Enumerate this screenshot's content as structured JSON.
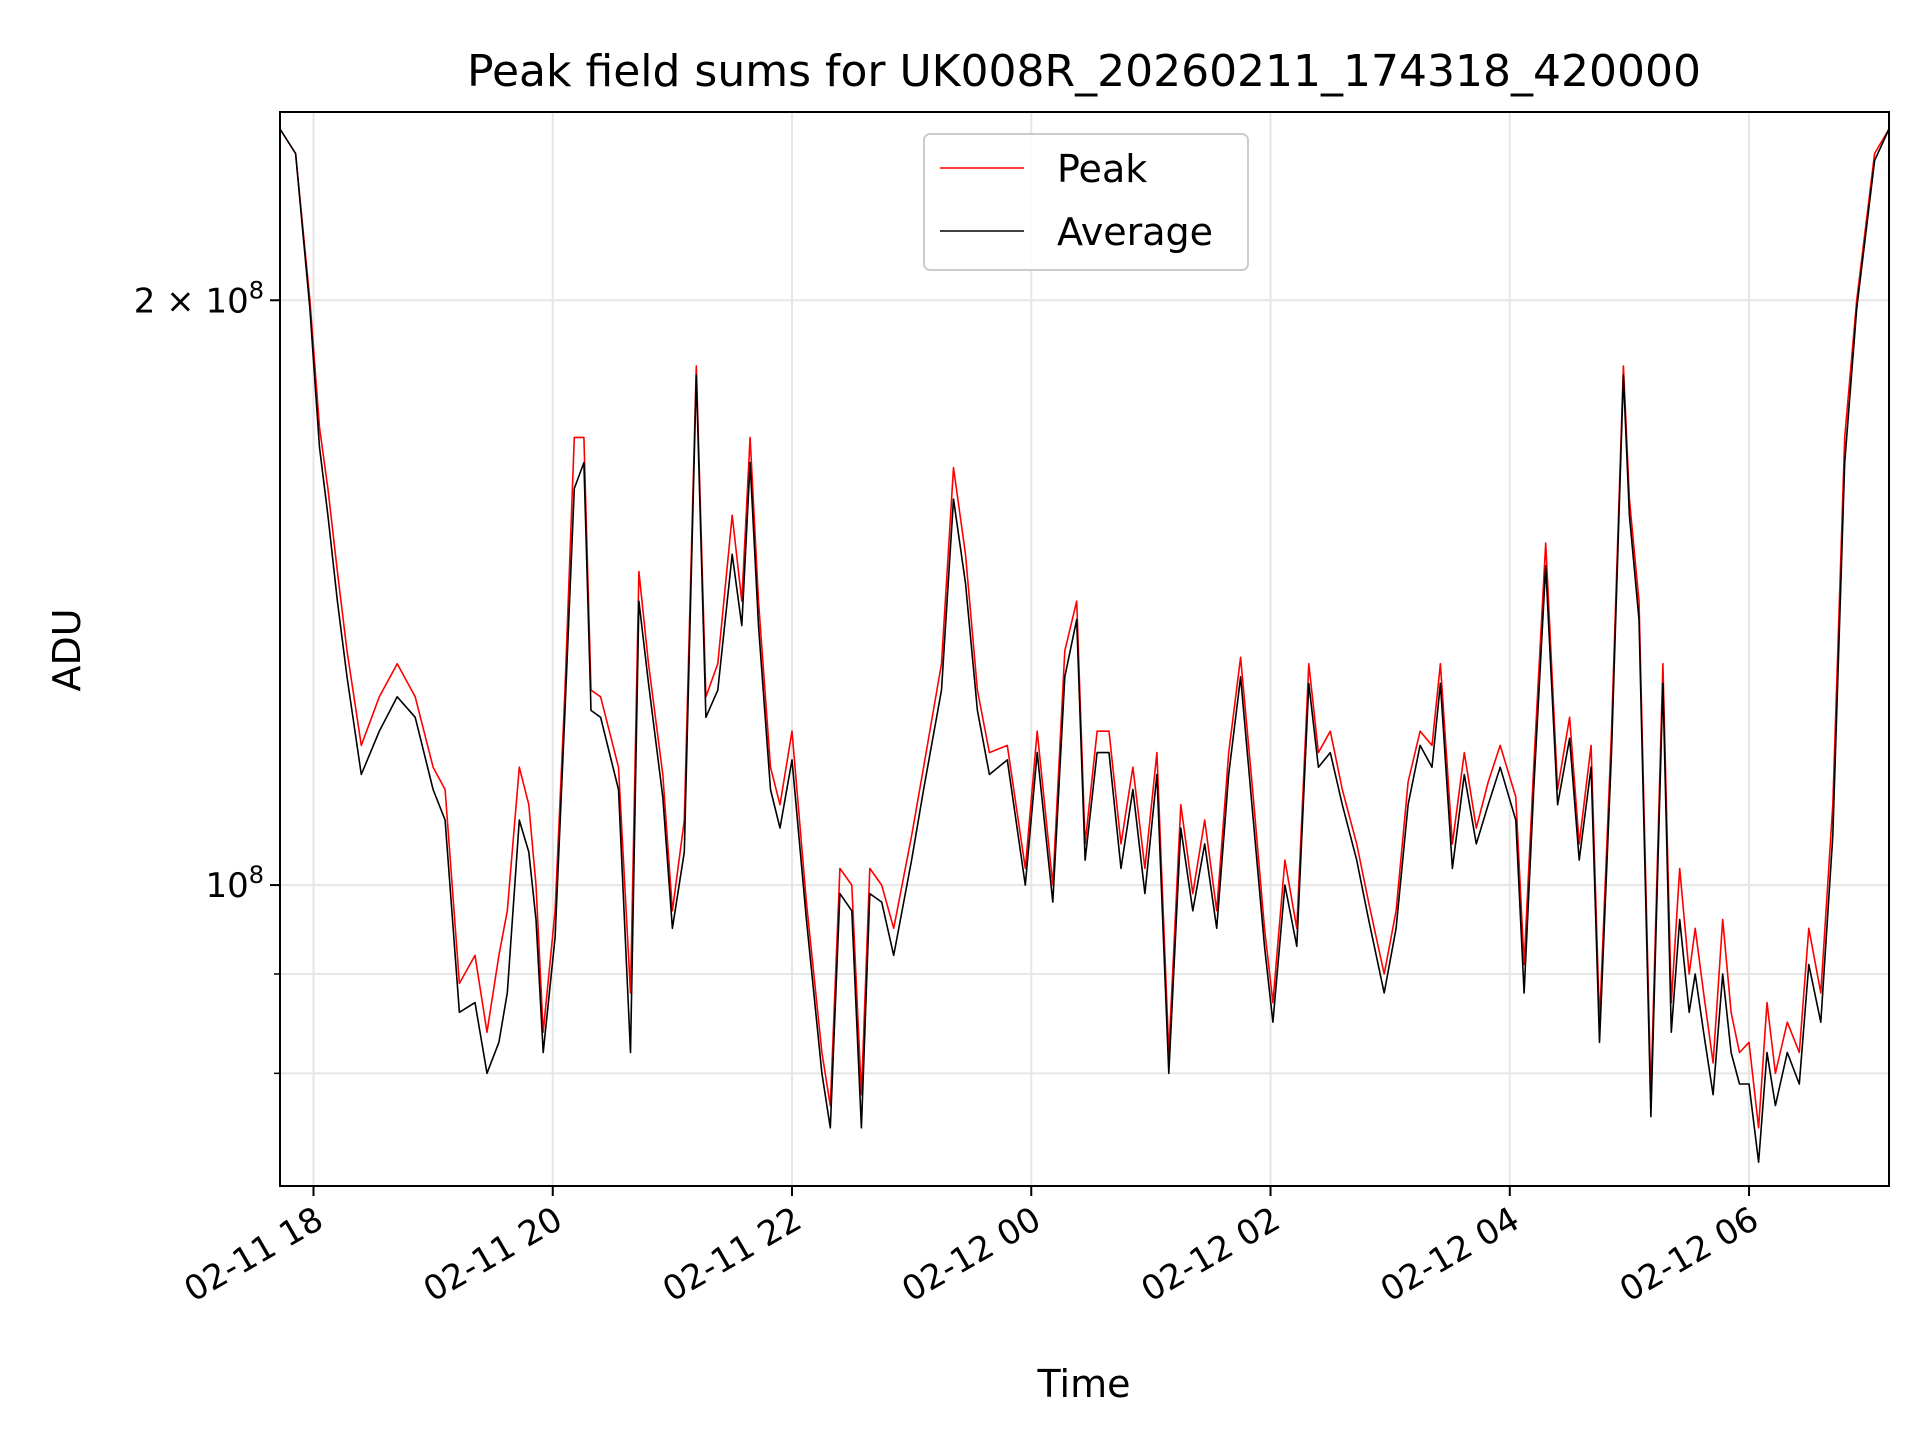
{
  "chart_data": {
    "type": "line",
    "title": "Peak field sums for UK008R_20260211_174318_420000",
    "xlabel": "Time",
    "ylabel": "ADU",
    "yscale": "log",
    "grid": true,
    "legend_position": "top-center",
    "xlim_hours": [
      17.72,
      31.17
    ],
    "ylim": [
      70000000,
      250000000
    ],
    "x_ticks": [
      {
        "hour": 18,
        "label": "02-11 18"
      },
      {
        "hour": 20,
        "label": "02-11 20"
      },
      {
        "hour": 22,
        "label": "02-11 22"
      },
      {
        "hour": 24,
        "label": "02-12 00"
      },
      {
        "hour": 26,
        "label": "02-12 02"
      },
      {
        "hour": 28,
        "label": "02-12 04"
      },
      {
        "hour": 30,
        "label": "02-12 06"
      }
    ],
    "y_ticks": [
      {
        "value": 200000000,
        "base": "2 × 10",
        "exp": "8"
      },
      {
        "value": 100000000,
        "base": "10",
        "exp": "8"
      }
    ],
    "y_minor_ticks": [
      80000000,
      90000000
    ],
    "series": [
      {
        "name": "Peak",
        "color": "#ff0000",
        "x": [
          17.72,
          17.85,
          17.97,
          18.05,
          18.12,
          18.2,
          18.28,
          18.4,
          18.55,
          18.7,
          18.85,
          19.0,
          19.1,
          19.22,
          19.35,
          19.45,
          19.55,
          19.62,
          19.72,
          19.8,
          19.86,
          19.92,
          20.02,
          20.1,
          20.18,
          20.26,
          20.32,
          20.4,
          20.55,
          20.65,
          20.72,
          20.8,
          20.92,
          21.0,
          21.1,
          21.2,
          21.28,
          21.38,
          21.5,
          21.58,
          21.65,
          21.72,
          21.82,
          21.9,
          22.0,
          22.12,
          22.25,
          22.32,
          22.4,
          22.5,
          22.58,
          22.65,
          22.75,
          22.85,
          23.0,
          23.1,
          23.25,
          23.35,
          23.45,
          23.55,
          23.65,
          23.8,
          23.95,
          24.05,
          24.18,
          24.28,
          24.38,
          24.45,
          24.55,
          24.65,
          24.75,
          24.85,
          24.95,
          25.05,
          25.15,
          25.25,
          25.35,
          25.45,
          25.55,
          25.65,
          25.75,
          25.85,
          25.95,
          26.02,
          26.12,
          26.22,
          26.32,
          26.4,
          26.5,
          26.6,
          26.72,
          26.82,
          26.95,
          27.05,
          27.15,
          27.25,
          27.35,
          27.42,
          27.52,
          27.62,
          27.72,
          27.82,
          27.92,
          28.05,
          28.12,
          28.2,
          28.3,
          28.4,
          28.5,
          28.58,
          28.68,
          28.75,
          28.85,
          28.95,
          29.0,
          29.08,
          29.18,
          29.28,
          29.35,
          29.42,
          29.5,
          29.55,
          29.62,
          29.7,
          29.78,
          29.85,
          29.92,
          30.0,
          30.08,
          30.15,
          30.22,
          30.32,
          30.42,
          30.5,
          30.6,
          30.7,
          30.8,
          30.9,
          31.05,
          31.17
        ],
        "y": [
          245000000,
          238000000,
          200000000,
          172000000,
          160000000,
          145000000,
          132000000,
          118000000,
          125000000,
          130000000,
          125000000,
          115000000,
          112000000,
          89000000,
          92000000,
          84000000,
          92000000,
          97000000,
          115000000,
          110000000,
          100000000,
          84000000,
          97000000,
          125000000,
          170000000,
          170000000,
          126000000,
          125000000,
          115000000,
          88000000,
          145000000,
          130000000,
          114000000,
          97000000,
          108000000,
          185000000,
          125000000,
          130000000,
          155000000,
          140000000,
          170000000,
          140000000,
          115000000,
          110000000,
          120000000,
          98000000,
          82000000,
          77000000,
          102000000,
          100000000,
          78000000,
          102000000,
          100000000,
          95000000,
          106000000,
          115000000,
          130000000,
          164000000,
          148000000,
          126000000,
          117000000,
          118000000,
          102000000,
          120000000,
          100000000,
          132000000,
          140000000,
          105000000,
          120000000,
          120000000,
          105000000,
          115000000,
          102000000,
          117000000,
          82000000,
          110000000,
          99000000,
          108000000,
          97000000,
          117000000,
          131000000,
          112000000,
          95000000,
          87000000,
          103000000,
          95000000,
          130000000,
          117000000,
          120000000,
          112000000,
          105000000,
          98000000,
          90000000,
          97000000,
          113000000,
          120000000,
          118000000,
          130000000,
          105000000,
          117000000,
          107000000,
          113000000,
          118000000,
          111000000,
          91000000,
          115000000,
          150000000,
          112000000,
          122000000,
          105000000,
          118000000,
          85000000,
          120000000,
          185000000,
          158000000,
          140000000,
          78000000,
          130000000,
          87000000,
          102000000,
          90000000,
          95000000,
          88000000,
          81000000,
          96000000,
          86000000,
          82000000,
          83000000,
          75000000,
          87000000,
          80000000,
          85000000,
          82000000,
          95000000,
          88000000,
          110000000,
          170000000,
          200000000,
          238000000,
          245000000
        ]
      },
      {
        "name": "Average",
        "color": "#000000",
        "x": [
          17.72,
          17.85,
          17.97,
          18.05,
          18.12,
          18.2,
          18.28,
          18.4,
          18.55,
          18.7,
          18.85,
          19.0,
          19.1,
          19.22,
          19.35,
          19.45,
          19.55,
          19.62,
          19.72,
          19.8,
          19.86,
          19.92,
          20.02,
          20.1,
          20.18,
          20.26,
          20.32,
          20.4,
          20.55,
          20.65,
          20.72,
          20.8,
          20.92,
          21.0,
          21.1,
          21.2,
          21.28,
          21.38,
          21.5,
          21.58,
          21.65,
          21.72,
          21.82,
          21.9,
          22.0,
          22.12,
          22.25,
          22.32,
          22.4,
          22.5,
          22.58,
          22.65,
          22.75,
          22.85,
          23.0,
          23.1,
          23.25,
          23.35,
          23.45,
          23.55,
          23.65,
          23.8,
          23.95,
          24.05,
          24.18,
          24.28,
          24.38,
          24.45,
          24.55,
          24.65,
          24.75,
          24.85,
          24.95,
          25.05,
          25.15,
          25.25,
          25.35,
          25.45,
          25.55,
          25.65,
          25.75,
          25.85,
          25.95,
          26.02,
          26.12,
          26.22,
          26.32,
          26.4,
          26.5,
          26.6,
          26.72,
          26.82,
          26.95,
          27.05,
          27.15,
          27.25,
          27.35,
          27.42,
          27.52,
          27.62,
          27.72,
          27.82,
          27.92,
          28.05,
          28.12,
          28.2,
          28.3,
          28.4,
          28.5,
          28.58,
          28.68,
          28.75,
          28.85,
          28.95,
          29.0,
          29.08,
          29.18,
          29.28,
          29.35,
          29.42,
          29.5,
          29.55,
          29.62,
          29.7,
          29.78,
          29.85,
          29.92,
          30.0,
          30.08,
          30.15,
          30.22,
          30.32,
          30.42,
          30.5,
          30.6,
          30.7,
          30.8,
          30.9,
          31.05,
          31.17
        ],
        "y": [
          245000000,
          238000000,
          198000000,
          168000000,
          155000000,
          140000000,
          128000000,
          114000000,
          120000000,
          125000000,
          122000000,
          112000000,
          108000000,
          86000000,
          87000000,
          80000000,
          83000000,
          88000000,
          108000000,
          104000000,
          96000000,
          82000000,
          94000000,
          122000000,
          160000000,
          165000000,
          123000000,
          122000000,
          112000000,
          82000000,
          140000000,
          127000000,
          111000000,
          95000000,
          104000000,
          183000000,
          122000000,
          126000000,
          148000000,
          136000000,
          165000000,
          136000000,
          112000000,
          107000000,
          116000000,
          96000000,
          80000000,
          75000000,
          99000000,
          97000000,
          75000000,
          99000000,
          98000000,
          92000000,
          103000000,
          112000000,
          126000000,
          158000000,
          143000000,
          123000000,
          114000000,
          116000000,
          100000000,
          117000000,
          98000000,
          128000000,
          137000000,
          103000000,
          117000000,
          117000000,
          102000000,
          112000000,
          99000000,
          114000000,
          80000000,
          107000000,
          97000000,
          105000000,
          95000000,
          114000000,
          128000000,
          109000000,
          93000000,
          85000000,
          100000000,
          93000000,
          127000000,
          115000000,
          117000000,
          110000000,
          103000000,
          96000000,
          88000000,
          95000000,
          110000000,
          118000000,
          115000000,
          127000000,
          102000000,
          114000000,
          105000000,
          110000000,
          115000000,
          108000000,
          88000000,
          112000000,
          146000000,
          110000000,
          119000000,
          103000000,
          115000000,
          83000000,
          117000000,
          183000000,
          155000000,
          137000000,
          76000000,
          127000000,
          84000000,
          96000000,
          86000000,
          90000000,
          84000000,
          78000000,
          90000000,
          82000000,
          79000000,
          79000000,
          72000000,
          82000000,
          77000000,
          82000000,
          79000000,
          91000000,
          85000000,
          106000000,
          165000000,
          198000000,
          236000000,
          245000000
        ]
      }
    ]
  }
}
